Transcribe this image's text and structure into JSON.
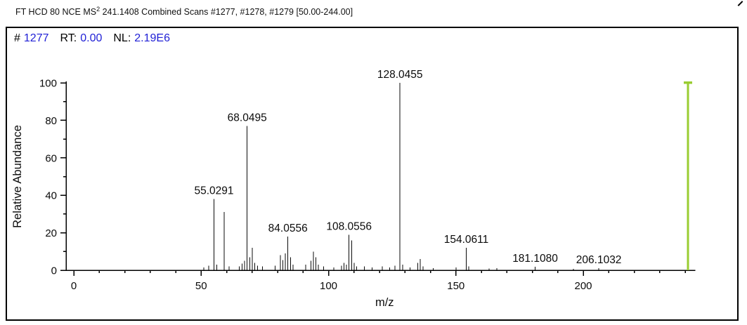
{
  "colors": {
    "value_blue": "#2121d6",
    "axis_black": "#000000"
  },
  "window_title": {
    "prefix": "FT HCD 80 NCE MS",
    "superscript": "2",
    "suffix": " 241.1408 Combined Scans #1277, #1278, #1279 [50.00-244.00]"
  },
  "scan_header": {
    "hash": "#",
    "scan_number": "1277",
    "rt_label": "RT:",
    "rt_value": "0.00",
    "nl_label": "NL:",
    "nl_value": "2.19E6"
  },
  "chart_data": {
    "type": "bar",
    "title": "FT HCD 80 NCE MS2 241.1408 Combined Scans #1277, #1278, #1279 [50.00-244.00]",
    "xlabel": "m/z",
    "ylabel": "Relative Abundance",
    "xlim": [
      0,
      244
    ],
    "ylim": [
      0,
      100
    ],
    "x_major_ticks": [
      0,
      50,
      100,
      150,
      200
    ],
    "x_minor_step": 10,
    "y_major_ticks": [
      0,
      20,
      40,
      60,
      80,
      100
    ],
    "y_minor_step": 10,
    "grid": false,
    "legend": false,
    "peaks": [
      {
        "mz": 51.0,
        "intensity": 1.5
      },
      {
        "mz": 53.0,
        "intensity": 2.5
      },
      {
        "mz": 55.0291,
        "intensity": 38,
        "label": "55.0291"
      },
      {
        "mz": 56.1,
        "intensity": 3
      },
      {
        "mz": 59.05,
        "intensity": 31
      },
      {
        "mz": 61.0,
        "intensity": 2
      },
      {
        "mz": 65.0,
        "intensity": 2
      },
      {
        "mz": 66.05,
        "intensity": 3.5
      },
      {
        "mz": 67.05,
        "intensity": 5
      },
      {
        "mz": 68.0495,
        "intensity": 77,
        "label": "68.0495"
      },
      {
        "mz": 69.06,
        "intensity": 7
      },
      {
        "mz": 70.065,
        "intensity": 12
      },
      {
        "mz": 71.06,
        "intensity": 4
      },
      {
        "mz": 72.08,
        "intensity": 2.5
      },
      {
        "mz": 74.06,
        "intensity": 2
      },
      {
        "mz": 79.05,
        "intensity": 2.5
      },
      {
        "mz": 81.04,
        "intensity": 8
      },
      {
        "mz": 82.05,
        "intensity": 5.5
      },
      {
        "mz": 83.06,
        "intensity": 9
      },
      {
        "mz": 84.0556,
        "intensity": 18,
        "label": "84.0556"
      },
      {
        "mz": 85.06,
        "intensity": 7
      },
      {
        "mz": 86.06,
        "intensity": 3
      },
      {
        "mz": 91.05,
        "intensity": 3
      },
      {
        "mz": 93.06,
        "intensity": 5
      },
      {
        "mz": 94.065,
        "intensity": 10
      },
      {
        "mz": 95.06,
        "intensity": 7
      },
      {
        "mz": 96.06,
        "intensity": 3
      },
      {
        "mz": 98.06,
        "intensity": 2
      },
      {
        "mz": 102.05,
        "intensity": 1.5
      },
      {
        "mz": 105.06,
        "intensity": 2.5
      },
      {
        "mz": 106.05,
        "intensity": 4
      },
      {
        "mz": 107.06,
        "intensity": 3
      },
      {
        "mz": 108.0556,
        "intensity": 19,
        "label": "108.0556"
      },
      {
        "mz": 109.064,
        "intensity": 16
      },
      {
        "mz": 110.06,
        "intensity": 4
      },
      {
        "mz": 111.07,
        "intensity": 2
      },
      {
        "mz": 114.06,
        "intensity": 2
      },
      {
        "mz": 117.07,
        "intensity": 1.5
      },
      {
        "mz": 121.065,
        "intensity": 2
      },
      {
        "mz": 124.06,
        "intensity": 1.5
      },
      {
        "mz": 126.07,
        "intensity": 2.5
      },
      {
        "mz": 128.0455,
        "intensity": 100,
        "label": "128.0455"
      },
      {
        "mz": 129.05,
        "intensity": 3
      },
      {
        "mz": 132.06,
        "intensity": 1.5
      },
      {
        "mz": 135.07,
        "intensity": 4
      },
      {
        "mz": 136.062,
        "intensity": 6
      },
      {
        "mz": 137.07,
        "intensity": 2
      },
      {
        "mz": 141.07,
        "intensity": 1.2
      },
      {
        "mz": 150.07,
        "intensity": 1.5
      },
      {
        "mz": 154.0611,
        "intensity": 12,
        "label": "154.0611"
      },
      {
        "mz": 155.08,
        "intensity": 2
      },
      {
        "mz": 163.09,
        "intensity": 1
      },
      {
        "mz": 166.09,
        "intensity": 1.2
      },
      {
        "mz": 181.108,
        "intensity": 1.8,
        "label": "181.1080"
      },
      {
        "mz": 196.1,
        "intensity": 0.8
      },
      {
        "mz": 206.1032,
        "intensity": 1.2,
        "label": "206.1032"
      }
    ],
    "precursor": {
      "mz": 241.1408,
      "intensity": 100,
      "color": "#9ACD32"
    }
  }
}
